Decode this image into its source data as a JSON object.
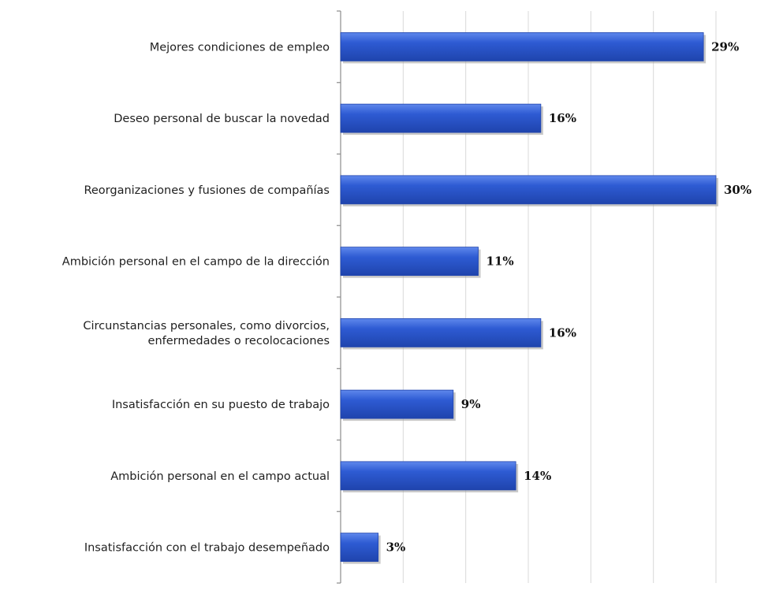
{
  "chart_data": {
    "type": "bar",
    "orientation": "horizontal",
    "categories": [
      [
        "Mejores condiciones de empleo"
      ],
      [
        "Deseo personal de buscar la novedad"
      ],
      [
        "Reorganizaciones y fusiones de compañías"
      ],
      [
        "Ambición personal en el campo de la dirección"
      ],
      [
        "Circunstancias personales, como divorcios,",
        "enfermedades o recolocaciones"
      ],
      [
        "Insatisfacción en su puesto de trabajo"
      ],
      [
        "Ambición personal en el campo actual"
      ],
      [
        "Insatisfacción con el trabajo desempeñado"
      ]
    ],
    "values": [
      29,
      16,
      30,
      11,
      16,
      9,
      14,
      3
    ],
    "value_labels": [
      "29%",
      "16%",
      "30%",
      "11%",
      "16%",
      "9%",
      "14%",
      "3%"
    ],
    "xlim": [
      0,
      30
    ],
    "x_gridline_step": 5,
    "grid": true,
    "legend": "none",
    "colors": {
      "bar_fill": "#2e5bd3",
      "bar_light": "#5f88ec",
      "bar_dark": "#1f44ad",
      "bar_shadow": "#9a9a9a",
      "gridline": "#d9d9d9",
      "axis": "#8c8c8c"
    }
  }
}
